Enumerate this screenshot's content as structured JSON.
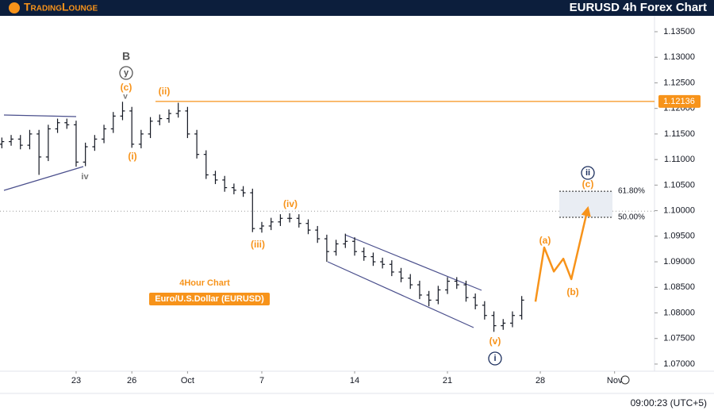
{
  "header": {
    "logo": "TradingLounge",
    "title": "EURUSD 4h Forex Chart"
  },
  "chart_data": {
    "type": "ohlc",
    "color": "#131722",
    "x": [
      -4,
      -3.5,
      -3,
      -2.5,
      -2,
      -1.5,
      -1,
      -0.5,
      0,
      0.5,
      1,
      1.5,
      2,
      2.5,
      3,
      3.5,
      4,
      4.5,
      5,
      5.5,
      6,
      6.5,
      7,
      7.5,
      8,
      8.5,
      9,
      9.5,
      10,
      10.5,
      11,
      11.5,
      12,
      12.5,
      13,
      13.5,
      14,
      14.5,
      15,
      15.5,
      16,
      16.5,
      17,
      17.5,
      18,
      18.5,
      19,
      19.5,
      20,
      20.5,
      21,
      21.5,
      22,
      22.5,
      23,
      23.5,
      24
    ],
    "open": [
      1.113,
      1.1135,
      1.114,
      1.1128,
      1.115,
      1.1105,
      1.116,
      1.1172,
      1.1168,
      1.1095,
      1.1125,
      1.114,
      1.116,
      1.1185,
      1.1195,
      1.113,
      1.115,
      1.1175,
      1.118,
      1.119,
      1.1195,
      1.115,
      1.111,
      1.107,
      1.106,
      1.1045,
      1.104,
      1.1035,
      1.0965,
      1.097,
      1.0978,
      1.0985,
      1.0985,
      1.0975,
      1.0962,
      1.0945,
      1.092,
      1.0935,
      1.094,
      1.092,
      1.091,
      1.09,
      1.0895,
      1.088,
      1.0868,
      1.0855,
      1.0835,
      1.0825,
      1.0845,
      1.0862,
      1.0855,
      1.083,
      1.0815,
      1.0795,
      1.0775,
      1.078,
      1.0795
    ],
    "high": [
      1.1143,
      1.1148,
      1.1148,
      1.1158,
      1.1158,
      1.1168,
      1.118,
      1.118,
      1.1176,
      1.1133,
      1.1148,
      1.1168,
      1.1193,
      1.1213,
      1.1203,
      1.1158,
      1.1183,
      1.1188,
      1.1198,
      1.1211,
      1.1203,
      1.1158,
      1.1118,
      1.1078,
      1.1068,
      1.1053,
      1.1048,
      1.1043,
      1.0978,
      1.0986,
      1.0993,
      1.0995,
      1.0993,
      1.0983,
      1.097,
      1.0953,
      1.0943,
      1.0955,
      1.0948,
      1.0928,
      1.0918,
      1.0908,
      1.0903,
      1.0888,
      1.0876,
      1.0863,
      1.0843,
      1.0853,
      1.087,
      1.087,
      1.0863,
      1.0838,
      1.0823,
      1.0803,
      1.0788,
      1.0803,
      1.0833
    ],
    "low": [
      1.1122,
      1.1127,
      1.112,
      1.112,
      1.107,
      1.1097,
      1.1152,
      1.116,
      1.1086,
      1.1087,
      1.1117,
      1.1132,
      1.1152,
      1.1177,
      1.1123,
      1.1122,
      1.1142,
      1.1167,
      1.1172,
      1.1182,
      1.1142,
      1.1102,
      1.1062,
      1.1052,
      1.1037,
      1.1032,
      1.1027,
      1.0958,
      1.0957,
      1.0962,
      1.097,
      1.0977,
      1.0967,
      1.0954,
      1.0937,
      1.09,
      1.0912,
      1.0927,
      1.0912,
      1.0902,
      1.0892,
      1.0887,
      1.0872,
      1.086,
      1.0847,
      1.0827,
      1.0813,
      1.0817,
      1.0837,
      1.0847,
      1.0822,
      1.0807,
      1.0787,
      1.0763,
      1.0767,
      1.0772,
      1.0787
    ],
    "close": [
      1.1135,
      1.114,
      1.1128,
      1.115,
      1.1105,
      1.116,
      1.1172,
      1.1168,
      1.1095,
      1.1125,
      1.114,
      1.116,
      1.1185,
      1.1195,
      1.113,
      1.115,
      1.1175,
      1.118,
      1.119,
      1.1195,
      1.115,
      1.111,
      1.107,
      1.106,
      1.1045,
      1.104,
      1.1035,
      1.0965,
      1.097,
      1.0978,
      1.0985,
      1.0985,
      1.0975,
      1.0962,
      1.0945,
      1.092,
      1.0935,
      1.094,
      1.092,
      1.091,
      1.09,
      1.0895,
      1.088,
      1.0868,
      1.0855,
      1.0835,
      1.0825,
      1.0845,
      1.0862,
      1.0855,
      1.083,
      1.0815,
      1.0795,
      1.0775,
      1.078,
      1.0795,
      1.0825
    ],
    "xlim": [
      -4.1,
      31.15
    ],
    "xticks": [
      {
        "value": 0,
        "label": "23"
      },
      {
        "value": 3,
        "label": "26"
      },
      {
        "value": 6,
        "label": "Oct"
      },
      {
        "value": 10,
        "label": "7"
      },
      {
        "value": 15,
        "label": "14"
      },
      {
        "value": 20,
        "label": "21"
      },
      {
        "value": 25,
        "label": "28"
      },
      {
        "value": 29,
        "label": "Nov"
      }
    ],
    "ylim": [
      1.0686,
      1.1381
    ],
    "yticks": [
      {
        "value": 1.07,
        "label": "1.07000"
      },
      {
        "value": 1.075,
        "label": "1.07500"
      },
      {
        "value": 1.08,
        "label": "1.08000"
      },
      {
        "value": 1.085,
        "label": "1.08500"
      },
      {
        "value": 1.09,
        "label": "1.09000"
      },
      {
        "value": 1.095,
        "label": "1.09500"
      },
      {
        "value": 1.1,
        "label": "1.10000"
      },
      {
        "value": 1.105,
        "label": "1.10500"
      },
      {
        "value": 1.11,
        "label": "1.11000"
      },
      {
        "value": 1.115,
        "label": "1.11500"
      },
      {
        "value": 1.12,
        "label": "1.12000"
      },
      {
        "value": 1.125,
        "label": "1.12500"
      },
      {
        "value": 1.13,
        "label": "1.13000"
      },
      {
        "value": 1.135,
        "label": "1.13500"
      }
    ],
    "price_line": {
      "value": 1.12136,
      "color": "#f7931a"
    },
    "reference_line": 1.0999,
    "fib_levels": [
      {
        "label": "61.80%",
        "value": 1.1038
      },
      {
        "label": "50.00%",
        "value": 1.0987
      }
    ],
    "projection": {
      "color": "#f7931a",
      "x": [
        24.74,
        25.21,
        25.73,
        26.24,
        26.67,
        27.56
      ],
      "values": [
        1.0822,
        1.0928,
        1.0881,
        1.0906,
        1.0866,
        1.1005
      ]
    },
    "annotations": {
      "timeframe": "4Hour Chart",
      "instrument": "Euro/U.S.Dollar (EURUSD)"
    },
    "wave_labels": [
      "B",
      "y",
      "(c)",
      "v",
      "(i)",
      "iv",
      "(ii)",
      "(iii)",
      "(iv)",
      "(v)",
      "i",
      "ii",
      "(c)",
      "(a)",
      "(b)"
    ]
  },
  "footer": {
    "time": "09:00:23 (UTC+5)"
  }
}
